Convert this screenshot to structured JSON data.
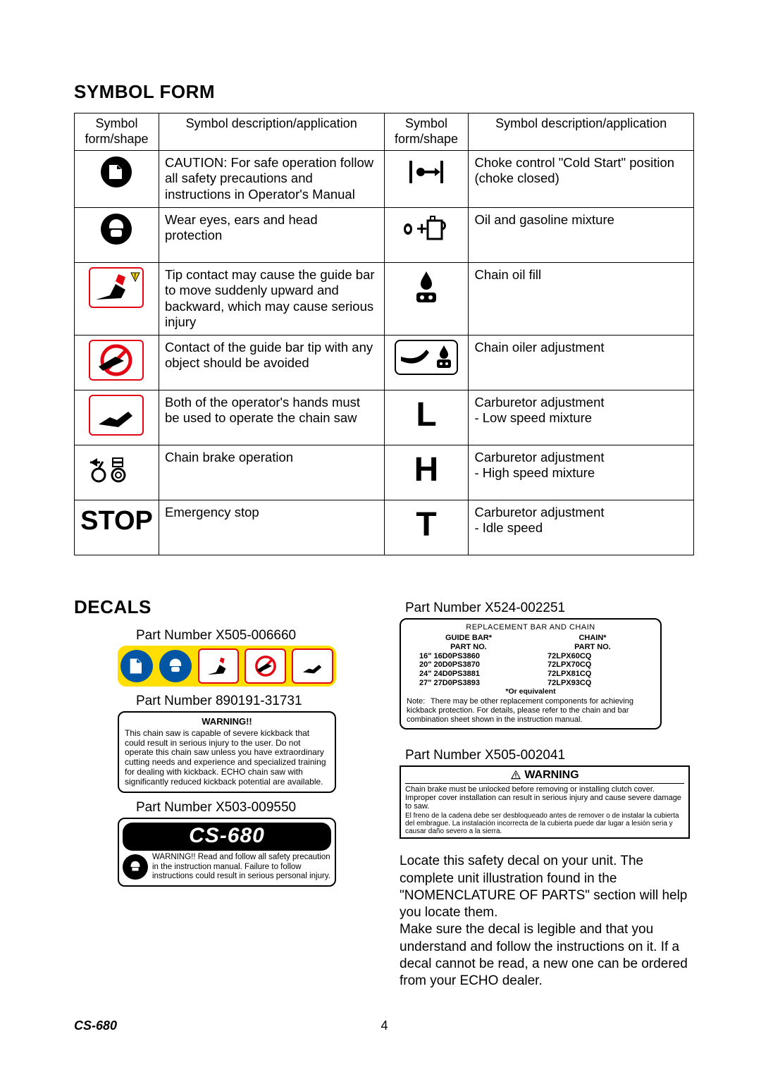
{
  "section1_title": "SYMBOL FORM",
  "table": {
    "headers": [
      "Symbol form/shape",
      "Symbol description/application",
      "Symbol form/shape",
      "Symbol description/application"
    ],
    "rows": [
      {
        "descA": "CAUTION: For safe operation follow all safety precautions and instructions in Operator's Manual",
        "descB": "Choke control \"Cold Start\" position (choke closed)"
      },
      {
        "descA": "Wear eyes, ears and head protection",
        "descB": "Oil and gasoline mixture"
      },
      {
        "descA": "Tip contact may cause the guide bar to move suddenly upward and backward, which may cause serious injury",
        "descB": "Chain oil fill"
      },
      {
        "descA": "Contact of the guide bar tip with any object should be avoided",
        "descB": "Chain oiler adjustment"
      },
      {
        "descA": "Both of the operator's hands must be used to operate the chain saw",
        "letterB": "L",
        "descB": "Carburetor adjustment\n- Low speed mixture"
      },
      {
        "descA": "Chain brake operation",
        "letterB": "H",
        "descB": "Carburetor adjustment\n- High speed mixture"
      },
      {
        "stopA": "STOP",
        "descA": "Emergency stop",
        "letterB": "T",
        "descB": "Carburetor adjustment\n- Idle speed"
      }
    ]
  },
  "section2_title": "DECALS",
  "decals": {
    "pn1": "Part Number X505-006660",
    "pn2": "Part Number 890191-31731",
    "warn1_head": "WARNING!!",
    "warn1_body": "This chain saw is capable of severe kickback that could result in serious injury to the user. Do not operate this chain saw unless you have extraordinary cutting needs and experience and specialized training for dealing with kickback. ECHO chain saw with significantly reduced kickback potential are available.",
    "pn3": "Part Number X503-009550",
    "cs680_label": "CS-680",
    "cs680_text": "WARNING!! Read and follow all safety precaution in the instruction manual. Failure to follow instructions could result in serious personal injury.",
    "pn4": "Part Number X524-002251",
    "bc_head": "REPLACEMENT BAR AND CHAIN",
    "bc_col1": "GUIDE BAR*\nPART NO.",
    "bc_col2": "CHAIN*\nPART NO.",
    "bc_bars": [
      "16\"  16D0PS3860",
      "20\"  20D0PS3870",
      "24\"  24D0PS3881",
      "27\"  27D0PS3893"
    ],
    "bc_chains": [
      "72LPX60CQ",
      "72LPX70CQ",
      "72LPX81CQ",
      "72LPX93CQ"
    ],
    "or_eq": "*Or equivalent",
    "bc_note": "Note: There may be other replacement components for achieving kickback protection. For details, please refer to the chain and bar combination sheet shown in the instruction manual.",
    "pn5": "Part Number X505-002041",
    "warn3_head": "WARNING",
    "warn3_en": "Chain brake must be unlocked before removing or installing clutch cover. Improper cover installation can result in serious injury and cause severe damage to saw.",
    "warn3_es": "El freno de la cadena debe ser desbloqueado antes de remover o de instalar la cubierta del embrague. La instalación incorrecta de la cubierta puede dar lugar a lesión seria y causar daño severo a la sierra.",
    "locate": "Locate this safety decal on your unit. The complete unit illustration found in the \"NOMENCLATURE OF PARTS\" section will help you locate them.\nMake sure the decal is legible and that you understand and follow the instructions on it. If a decal cannot be read, a new one can be ordered from your ECHO dealer."
  },
  "footer": {
    "model": "CS-680",
    "page": "4"
  }
}
